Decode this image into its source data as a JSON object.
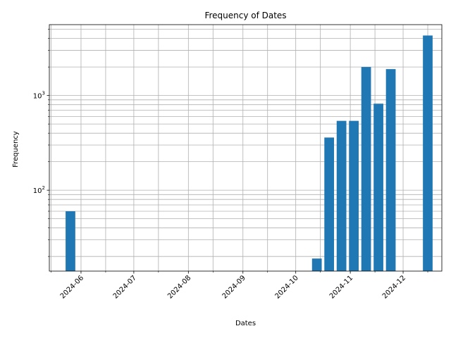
{
  "chart_data": {
    "type": "bar",
    "title": "Frequency of Dates",
    "xlabel": "Dates",
    "ylabel": "Frequency",
    "yscale": "log",
    "ylim": [
      14,
      5600
    ],
    "xlim": [
      "2024-05-14",
      "2024-12-23"
    ],
    "grid": true,
    "bar_color": "#1f77b4",
    "grid_color": "#b0b0b0",
    "x_ticks": [
      "2024-06",
      "2024-07",
      "2024-08",
      "2024-09",
      "2024-10",
      "2024-11",
      "2024-12"
    ],
    "y_ticks": [
      {
        "value": 100,
        "base": "10",
        "exp": "2"
      },
      {
        "value": 1000,
        "base": "10",
        "exp": "3"
      }
    ],
    "series": [
      {
        "x": [
          "2024-05-26",
          "2024-10-13",
          "2024-10-20",
          "2024-10-27",
          "2024-11-03",
          "2024-11-10",
          "2024-11-17",
          "2024-11-24",
          "2024-12-15"
        ],
        "values": [
          60,
          19,
          360,
          540,
          540,
          2000,
          820,
          1900,
          4300
        ]
      }
    ]
  }
}
